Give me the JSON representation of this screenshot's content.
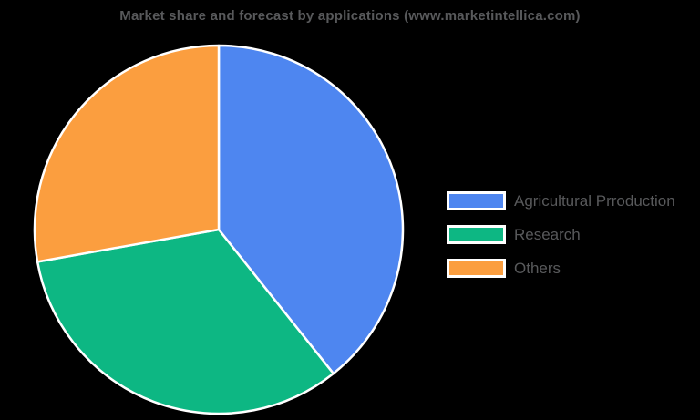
{
  "chart_data": {
    "type": "pie",
    "title": "Market share and forecast by applications (www.marketintellica.com)",
    "legend_position": "right",
    "direction": "clockwise",
    "start_angle_deg": 0,
    "items": [
      {
        "label": "Agricultural Prroduction",
        "value_pct": 39.3,
        "color": "#4e86f0"
      },
      {
        "label": "Research",
        "value_pct": 32.9,
        "color": "#0db783"
      },
      {
        "label": "Others",
        "value_pct": 27.8,
        "color": "#fb9e3f"
      }
    ],
    "slice_border_color": "#ffffff",
    "title_color": "#58595b",
    "legend_text_color": "#58595b",
    "background_color": "#000000"
  }
}
